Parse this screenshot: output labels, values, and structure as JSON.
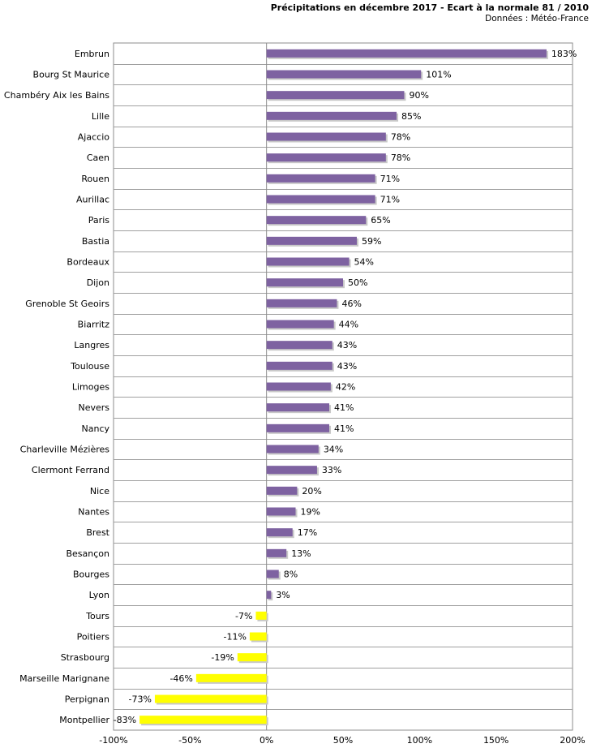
{
  "chart_data": {
    "type": "bar",
    "orientation": "horizontal",
    "title": "Précipitations en décembre 2017 - Ecart à la normale 81 / 2010",
    "subtitle": "Données : Météo-France",
    "categories": [
      "Embrun",
      "Bourg St Maurice",
      "Chambéry Aix les Bains",
      "Lille",
      "Ajaccio",
      "Caen",
      "Rouen",
      "Aurillac",
      "Paris",
      "Bastia",
      "Bordeaux",
      "Dijon",
      "Grenoble St Geoirs",
      "Biarritz",
      "Langres",
      "Toulouse",
      "Limoges",
      "Nevers",
      "Nancy",
      "Charleville Mézières",
      "Clermont Ferrand",
      "Nice",
      "Nantes",
      "Brest",
      "Besançon",
      "Bourges",
      "Lyon",
      "Tours",
      "Poitiers",
      "Strasbourg",
      "Marseille Marignane",
      "Perpignan",
      "Montpellier"
    ],
    "values": [
      183,
      101,
      90,
      85,
      78,
      78,
      71,
      71,
      65,
      59,
      54,
      50,
      46,
      44,
      43,
      43,
      42,
      41,
      41,
      34,
      33,
      20,
      19,
      17,
      13,
      8,
      3,
      -7,
      -11,
      -19,
      -46,
      -73,
      -83
    ],
    "value_labels": [
      "183%",
      "101%",
      "90%",
      "85%",
      "78%",
      "78%",
      "71%",
      "71%",
      "65%",
      "59%",
      "54%",
      "50%",
      "46%",
      "44%",
      "43%",
      "43%",
      "42%",
      "41%",
      "41%",
      "34%",
      "33%",
      "20%",
      "19%",
      "17%",
      "13%",
      "8%",
      "3%",
      "-7%",
      "-11%",
      "-19%",
      "-46%",
      "-73%",
      "-83%"
    ],
    "xlim": [
      -100,
      200
    ],
    "xticks": [
      "-100%",
      "-50%",
      "0%",
      "50%",
      "100%",
      "150%",
      "200%"
    ],
    "xtick_values": [
      -100,
      -50,
      0,
      50,
      100,
      150,
      200
    ],
    "grid": true,
    "colors": {
      "positive": "#7e62a1",
      "negative": "#ffff00"
    }
  }
}
